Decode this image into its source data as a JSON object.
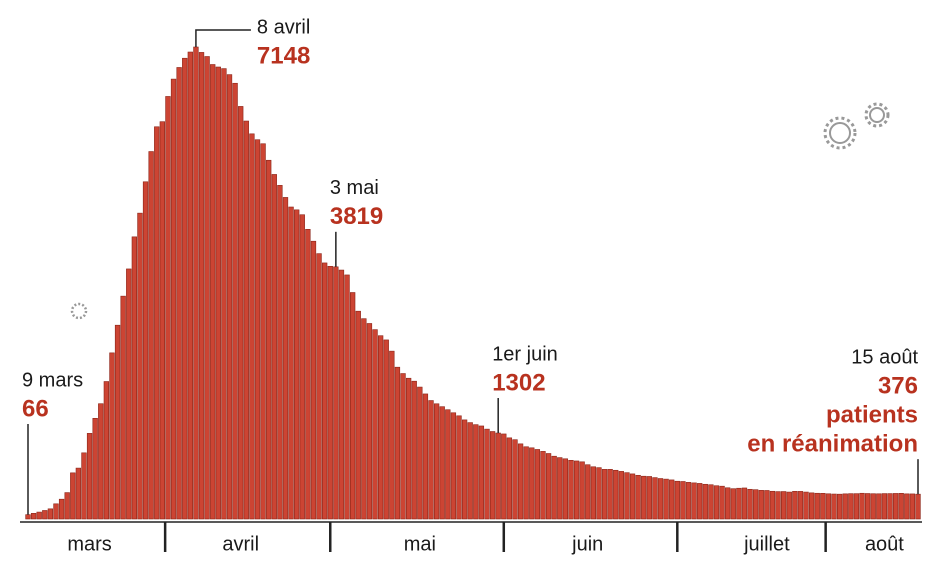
{
  "chart_data": {
    "type": "bar",
    "color": "#cc4433",
    "categories": [
      null,
      null,
      null,
      null,
      null,
      null,
      null,
      null,
      null,
      null,
      null,
      "mars",
      null,
      null,
      null,
      null,
      null,
      null,
      null,
      null,
      null,
      null,
      null,
      null,
      null,
      null,
      null,
      null,
      null,
      null,
      null,
      null,
      null,
      null,
      null,
      null,
      null,
      null,
      "avril",
      null,
      null,
      null,
      null,
      null,
      null,
      null,
      null,
      null,
      null,
      null,
      null,
      null,
      null,
      null,
      null,
      null,
      null,
      null,
      null,
      null,
      null,
      null,
      null,
      null,
      null,
      null,
      null,
      null,
      null,
      null,
      "mai",
      null,
      null,
      null,
      null,
      null,
      null,
      null,
      null,
      null,
      null,
      null,
      null,
      null,
      null,
      null,
      null,
      null,
      null,
      null,
      null,
      null,
      null,
      null,
      null,
      null,
      null,
      null,
      null,
      null,
      "juin",
      null,
      null,
      null,
      null,
      null,
      null,
      null,
      null,
      null,
      null,
      null,
      null,
      null,
      null,
      null,
      null,
      null,
      null,
      null,
      null,
      null,
      null,
      null,
      null,
      null,
      null,
      null,
      null,
      null,
      null,
      null,
      "juillet",
      null,
      null,
      null,
      null,
      null,
      null,
      null,
      null,
      null,
      null,
      null,
      null,
      null,
      null,
      null,
      null,
      null,
      null,
      null,
      null,
      "août",
      null,
      null,
      null,
      null,
      null,
      null
    ],
    "day_labels": [
      "9 mars",
      null,
      null,
      null,
      null,
      null,
      null,
      null,
      null,
      null,
      null,
      null,
      null,
      null,
      null,
      null,
      null,
      null,
      null,
      null,
      null,
      null,
      null,
      null,
      null,
      null,
      null,
      null,
      null,
      null,
      "8 avril",
      null,
      null,
      null,
      null,
      null,
      null,
      null,
      null,
      null,
      null,
      null,
      null,
      null,
      null,
      null,
      null,
      null,
      null,
      null,
      null,
      null,
      null,
      null,
      null,
      "3 mai",
      null,
      null,
      null,
      null,
      null,
      null,
      null,
      null,
      null,
      null,
      null,
      null,
      null,
      null,
      null,
      null,
      null,
      null,
      null,
      null,
      null,
      null,
      null,
      null,
      null,
      null,
      null,
      null,
      "1er juin",
      null,
      null,
      null,
      null,
      null,
      null,
      null,
      null,
      null,
      null,
      null,
      null,
      null,
      null,
      null,
      null,
      null,
      null,
      null,
      null,
      null,
      null,
      null,
      null,
      null,
      null,
      null,
      null,
      null,
      null,
      null,
      null,
      null,
      null,
      null,
      null,
      null,
      null,
      null,
      null,
      null,
      null,
      null,
      null,
      null,
      null,
      null,
      null,
      null,
      null,
      null,
      null,
      null,
      null,
      null,
      null,
      null,
      null,
      null,
      null,
      null,
      null,
      null,
      null,
      null,
      null,
      null,
      null,
      null,
      null,
      null,
      null,
      null,
      null,
      "15 août"
    ],
    "values": [
      66,
      86,
      105,
      129,
      154,
      230,
      300,
      400,
      699,
      771,
      1002,
      1297,
      1525,
      1746,
      2082,
      2516,
      2935,
      3375,
      3787,
      4273,
      4632,
      5107,
      5565,
      5940,
      6017,
      6399,
      6662,
      6838,
      6978,
      7072,
      7148,
      7066,
      7004,
      6883,
      6845,
      6821,
      6730,
      6599,
      6248,
      6027,
      5833,
      5744,
      5683,
      5433,
      5218,
      5053,
      4870,
      4725,
      4682,
      4608,
      4387,
      4207,
      4019,
      3878,
      3827,
      3819,
      3770,
      3696,
      3430,
      3147,
      3034,
      2961,
      2868,
      2776,
      2712,
      2542,
      2299,
      2203,
      2132,
      2087,
      1998,
      1894,
      1794,
      1745,
      1701,
      1655,
      1609,
      1563,
      1501,
      1460,
      1429,
      1409,
      1361,
      1325,
      1302,
      1288,
      1229,
      1201,
      1138,
      1094,
      1078,
      1053,
      1024,
      992,
      951,
      930,
      912,
      889,
      879,
      866,
      822,
      791,
      778,
      752,
      752,
      738,
      721,
      702,
      683,
      662,
      648,
      644,
      627,
      613,
      604,
      592,
      572,
      568,
      555,
      547,
      539,
      526,
      519,
      504,
      497,
      473,
      459,
      466,
      470,
      450,
      444,
      434,
      432,
      420,
      415,
      416,
      408,
      419,
      418,
      408,
      396,
      390,
      389,
      382,
      378,
      376,
      381,
      384,
      384,
      390,
      386,
      383,
      382,
      385,
      385,
      387,
      389,
      381,
      380,
      376
    ],
    "note": [
      "patients",
      "en réanimation"
    ]
  }
}
